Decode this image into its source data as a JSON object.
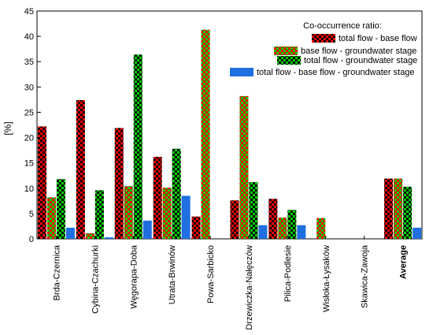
{
  "chart_data": {
    "type": "bar",
    "title": "",
    "xlabel": "",
    "ylabel": "[%]",
    "ylim": [
      0,
      45
    ],
    "yticks": [
      0,
      5,
      10,
      15,
      20,
      25,
      30,
      35,
      40,
      45
    ],
    "grid": false,
    "legend_title": "Co-occurrence ratio:",
    "legend_position": "top-right",
    "categories": [
      "Brda-Czernica",
      "Cybina-Czachurki",
      "Węgorapa-Doba",
      "Utrata-Brwinów",
      "Powa-Sarbicko",
      "Drzewiczka-Nałęczów",
      "Pilica-Podlesie",
      "Wisłoka-Łysaków",
      "Skawica-Zawoja",
      "Average"
    ],
    "bold_categories": [
      "Average"
    ],
    "series": [
      {
        "name": "total flow - base flow",
        "pattern": "checker",
        "colors": [
          "#000000",
          "#ff0000"
        ],
        "values": [
          22.2,
          27.4,
          21.9,
          16.2,
          4.4,
          7.6,
          7.9,
          0,
          0,
          11.9
        ]
      },
      {
        "name": "base flow - groundwater stage",
        "pattern": "checker",
        "colors": [
          "#ff0000",
          "#00cc00"
        ],
        "values": [
          8.2,
          1.1,
          10.4,
          10.1,
          41.3,
          28.2,
          4.2,
          4.1,
          0,
          11.9
        ]
      },
      {
        "name": "total flow - groundwater stage",
        "pattern": "checker",
        "colors": [
          "#000000",
          "#00cc00"
        ],
        "values": [
          11.8,
          9.6,
          36.4,
          17.8,
          0,
          11.2,
          5.7,
          0,
          0,
          10.3
        ]
      },
      {
        "name": "total flow - base flow - groundwater stage",
        "pattern": "solid",
        "colors": [
          "#1f6fe0"
        ],
        "values": [
          2.2,
          0.3,
          3.6,
          8.5,
          0,
          2.7,
          2.7,
          0,
          0,
          2.2
        ]
      }
    ]
  }
}
